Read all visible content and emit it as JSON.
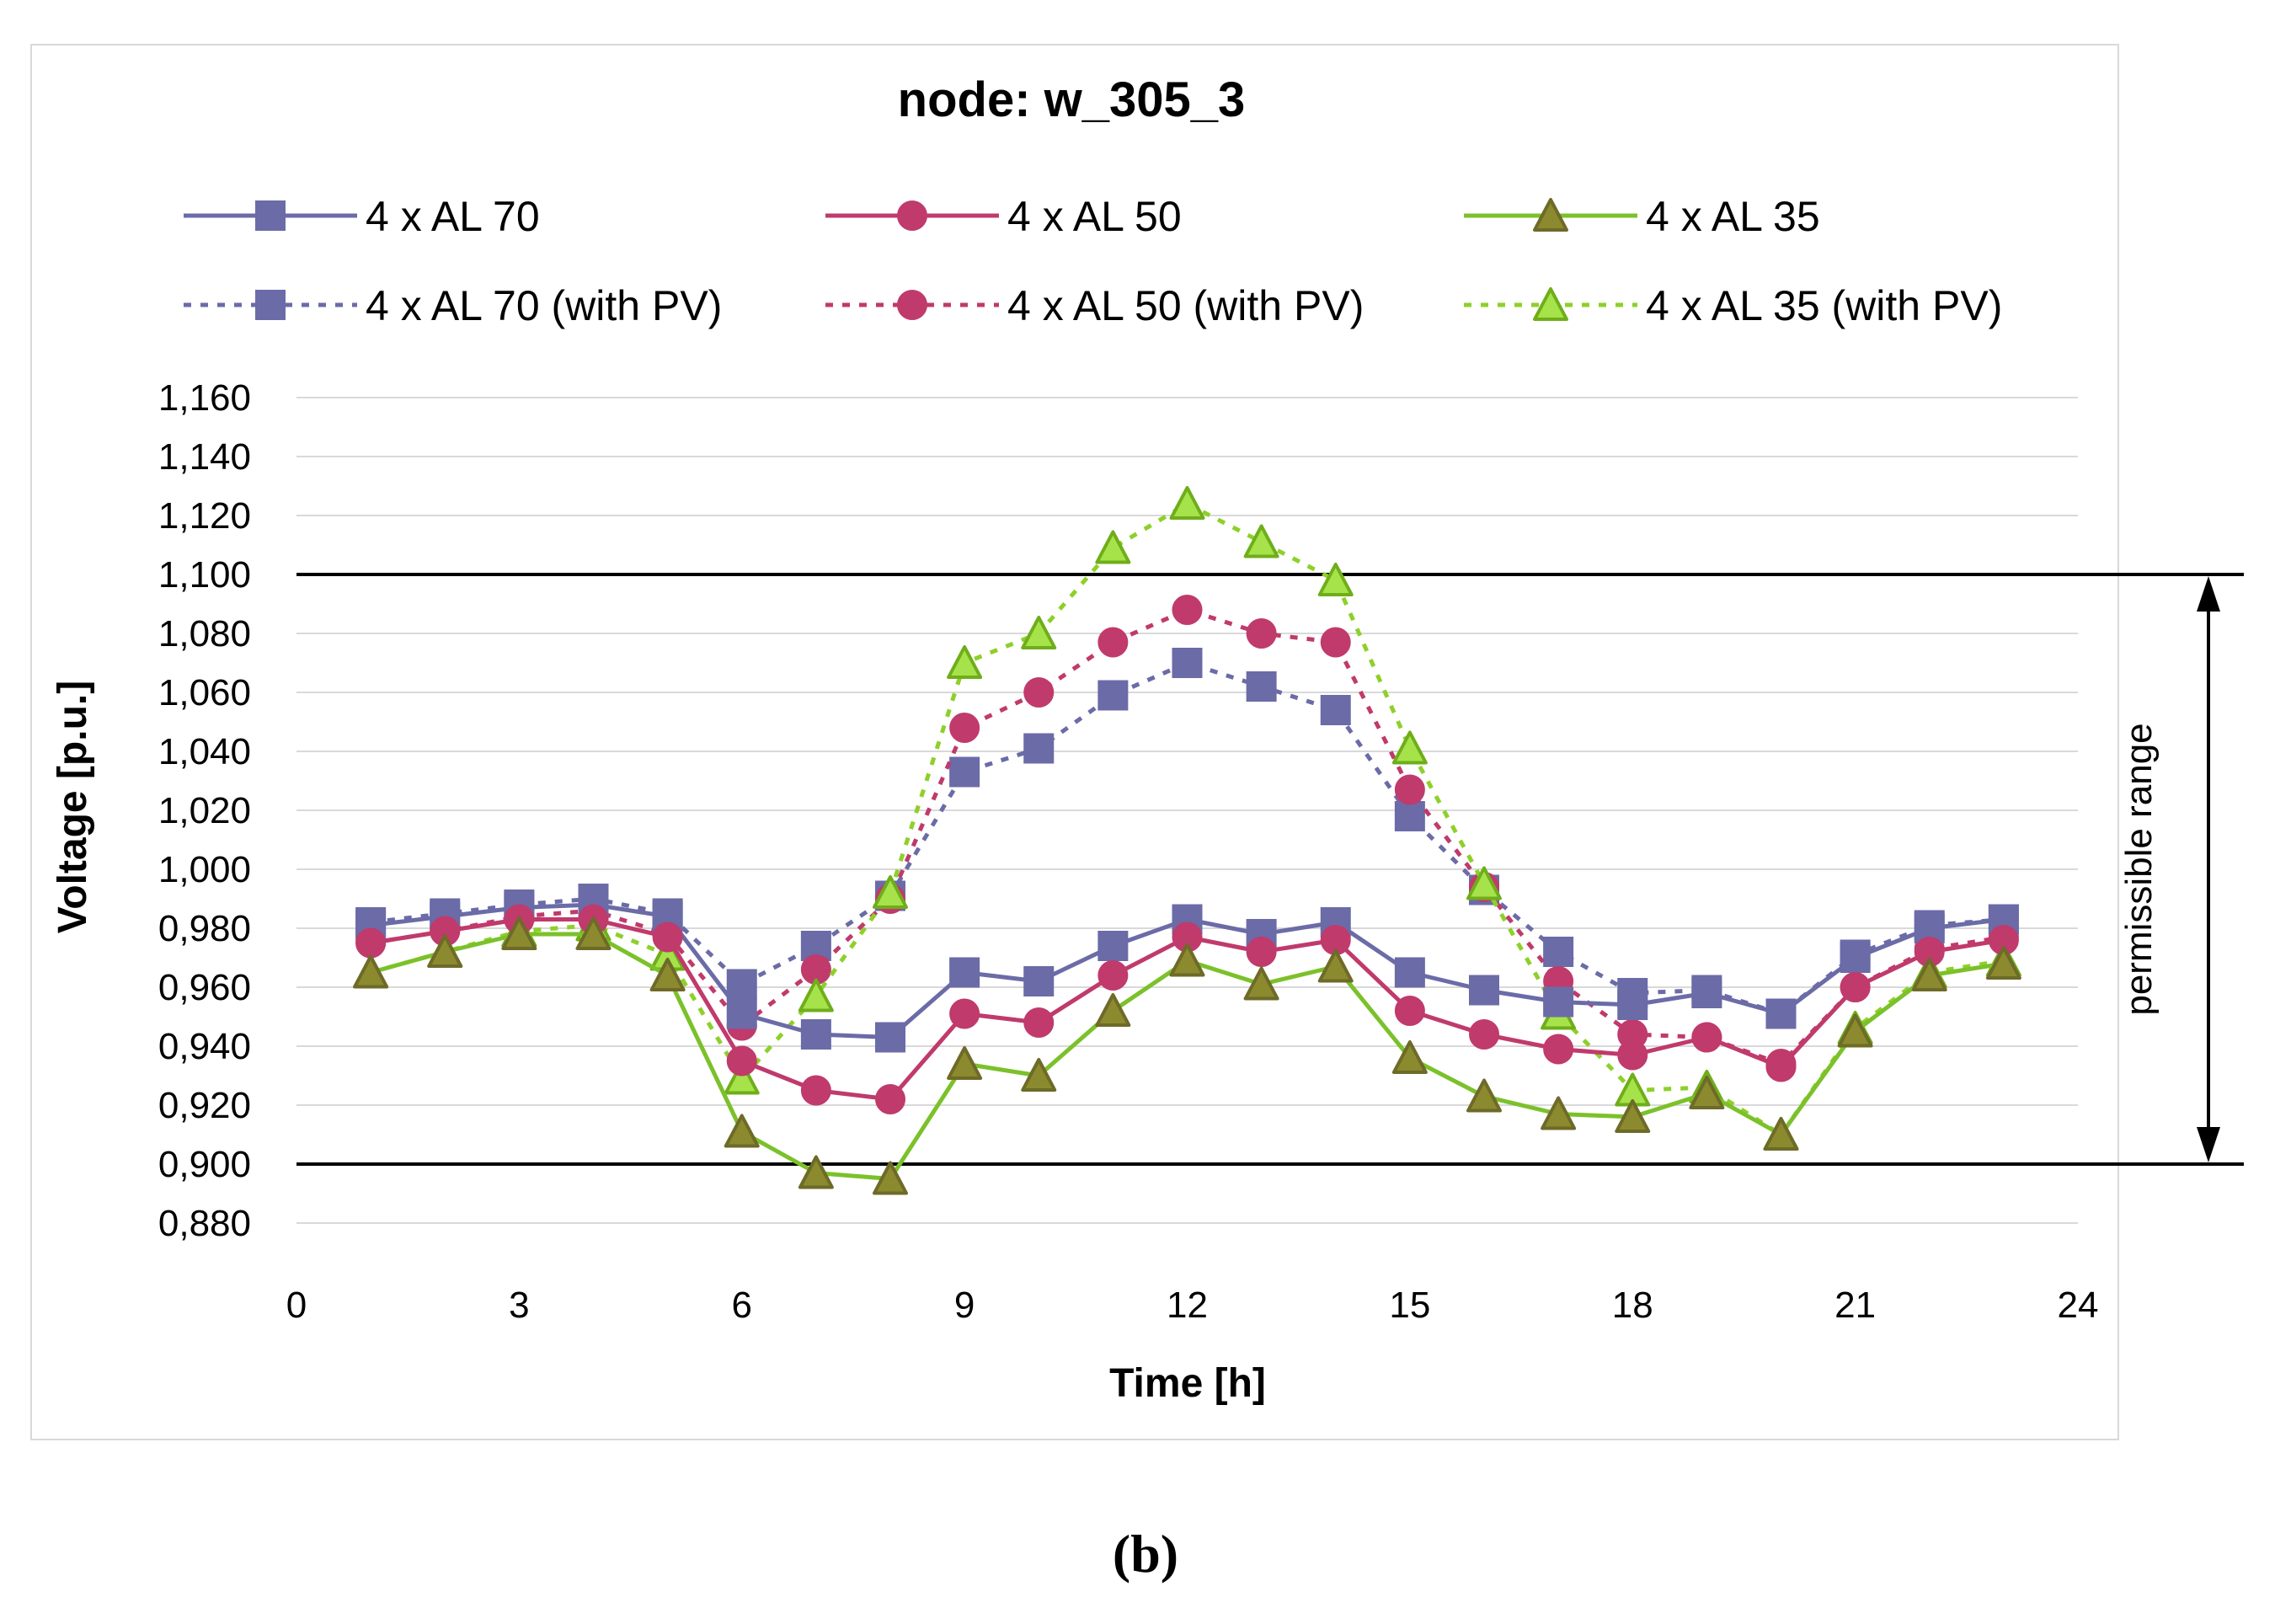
{
  "caption": "(b)",
  "chart_data": {
    "type": "line",
    "title": "node: w_305_3",
    "xlabel": "Time [h]",
    "ylabel": "Voltage [p.u.]",
    "xlim": [
      0,
      24
    ],
    "ylim": [
      0.88,
      1.16
    ],
    "x_ticks": [
      0,
      3,
      6,
      9,
      12,
      15,
      18,
      21,
      24
    ],
    "x_tick_labels": [
      "0",
      "3",
      "6",
      "9",
      "12",
      "15",
      "18",
      "21",
      "24"
    ],
    "y_ticks": [
      0.88,
      0.9,
      0.92,
      0.94,
      0.96,
      0.98,
      1.0,
      1.02,
      1.04,
      1.06,
      1.08,
      1.1,
      1.12,
      1.14,
      1.16
    ],
    "y_tick_labels": [
      "0,880",
      "0,900",
      "0,920",
      "0,940",
      "0,960",
      "0,980",
      "1,000",
      "1,020",
      "1,040",
      "1,060",
      "1,080",
      "1,100",
      "1,120",
      "1,140",
      "1,160"
    ],
    "grid": true,
    "legend_position": "top",
    "x": [
      1,
      2,
      3,
      4,
      5,
      6,
      7,
      8,
      9,
      10,
      11,
      12,
      13,
      14,
      15,
      16,
      17,
      18,
      19,
      20,
      21,
      22,
      23
    ],
    "series": [
      {
        "name": "4 x AL 70",
        "color": "#6b6ba8",
        "marker": "square",
        "fill": "#6b6ba8",
        "dashed": false,
        "values": [
          0.981,
          0.984,
          0.987,
          0.988,
          0.984,
          0.951,
          0.944,
          0.943,
          0.965,
          0.962,
          0.974,
          0.983,
          0.978,
          0.982,
          0.965,
          0.959,
          0.955,
          0.954,
          0.958,
          0.951,
          0.97,
          0.98,
          0.983
        ]
      },
      {
        "name": "4 x AL 50",
        "color": "#c03a6c",
        "marker": "circle",
        "fill": "#c03a6c",
        "dashed": false,
        "values": [
          0.975,
          0.979,
          0.983,
          0.983,
          0.977,
          0.935,
          0.925,
          0.922,
          0.951,
          0.948,
          0.964,
          0.977,
          0.972,
          0.976,
          0.952,
          0.944,
          0.939,
          0.937,
          0.943,
          0.933,
          0.96,
          0.972,
          0.976
        ]
      },
      {
        "name": "4 x AL 35",
        "color": "#7bc12a",
        "marker": "triangle",
        "fill": "#8b8a2e",
        "stroke": "#6e6a28",
        "dashed": false,
        "values": [
          0.965,
          0.972,
          0.978,
          0.978,
          0.964,
          0.911,
          0.897,
          0.895,
          0.934,
          0.93,
          0.952,
          0.969,
          0.961,
          0.967,
          0.936,
          0.923,
          0.917,
          0.916,
          0.924,
          0.91,
          0.945,
          0.964,
          0.968
        ]
      },
      {
        "name": "4 x AL 70 (with PV)",
        "color": "#6b6ba8",
        "marker": "square",
        "fill": "#6b6ba8",
        "dashed": true,
        "values": [
          0.982,
          0.985,
          0.988,
          0.99,
          0.985,
          0.961,
          0.974,
          0.991,
          1.033,
          1.041,
          1.059,
          1.07,
          1.062,
          1.054,
          1.018,
          0.993,
          0.972,
          0.958,
          0.959,
          0.951,
          0.971,
          0.981,
          0.983
        ]
      },
      {
        "name": "4 x AL 50 (with PV)",
        "color": "#c03a6c",
        "marker": "circle",
        "fill": "#c03a6c",
        "dashed": true,
        "values": [
          0.975,
          0.979,
          0.984,
          0.986,
          0.978,
          0.947,
          0.966,
          0.99,
          1.048,
          1.06,
          1.077,
          1.088,
          1.08,
          1.077,
          1.027,
          0.994,
          0.962,
          0.944,
          0.943,
          0.934,
          0.96,
          0.973,
          0.977
        ]
      },
      {
        "name": "4 x AL 35 (with PV)",
        "color": "#8ed02a",
        "marker": "triangle",
        "fill": "#a6e34a",
        "stroke": "#6fae1a",
        "dashed": true,
        "values": [
          0.965,
          0.972,
          0.979,
          0.981,
          0.971,
          0.929,
          0.957,
          0.992,
          1.07,
          1.08,
          1.109,
          1.124,
          1.111,
          1.098,
          1.041,
          0.995,
          0.951,
          0.925,
          0.926,
          0.91,
          0.946,
          0.965,
          0.969
        ]
      }
    ],
    "reference_lines": [
      1.1,
      0.9
    ],
    "annotation": {
      "text": "permissible range",
      "from": 0.9,
      "to": 1.1
    }
  }
}
